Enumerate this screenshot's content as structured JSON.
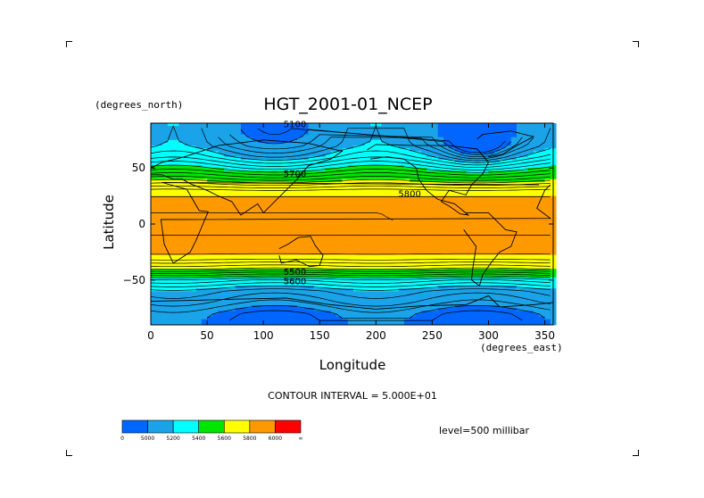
{
  "chart_data": {
    "type": "heatmap",
    "title": "HGT_2001-01_NCEP",
    "xlabel": "Longitude",
    "ylabel": "Latitude",
    "x_units": "(degrees_east)",
    "y_units": "(degrees_north)",
    "xlim": [
      0,
      357.5
    ],
    "ylim": [
      -90,
      90
    ],
    "x_ticks": [
      0,
      50,
      100,
      150,
      200,
      250,
      300,
      350
    ],
    "y_ticks": [
      50,
      0,
      -50
    ],
    "contour_interval_text": "CONTOUR INTERVAL = 5.000E+01",
    "level_text": "level=500 millibar",
    "contour_labels": [
      {
        "text": "5100",
        "lon": 128,
        "lat": 88
      },
      {
        "text": "5700",
        "lon": 128,
        "lat": 44
      },
      {
        "text": "5800",
        "lon": 230,
        "lat": 26
      },
      {
        "text": "5500",
        "lon": 128,
        "lat": -44
      },
      {
        "text": "5600",
        "lon": 128,
        "lat": -52
      }
    ],
    "colorbar": {
      "boundary_labels": [
        "0",
        "5000",
        "5200",
        "5400",
        "5600",
        "5800",
        "6000",
        "∞"
      ],
      "colors": [
        "#0066ff",
        "#1aa3e8",
        "#00ffff",
        "#00e600",
        "#ffff00",
        "#ff9900",
        "#ff0000"
      ]
    },
    "latitude_profile": {
      "lat": [
        -90,
        -80,
        -70,
        -60,
        -50,
        -40,
        -30,
        -20,
        -10,
        0,
        10,
        20,
        30,
        40,
        50,
        60,
        70,
        80,
        90
      ],
      "hgt": [
        4950,
        4980,
        5080,
        5150,
        5320,
        5600,
        5780,
        5840,
        5850,
        5850,
        5850,
        5830,
        5760,
        5560,
        5380,
        5220,
        5110,
        5070,
        5060
      ]
    }
  }
}
